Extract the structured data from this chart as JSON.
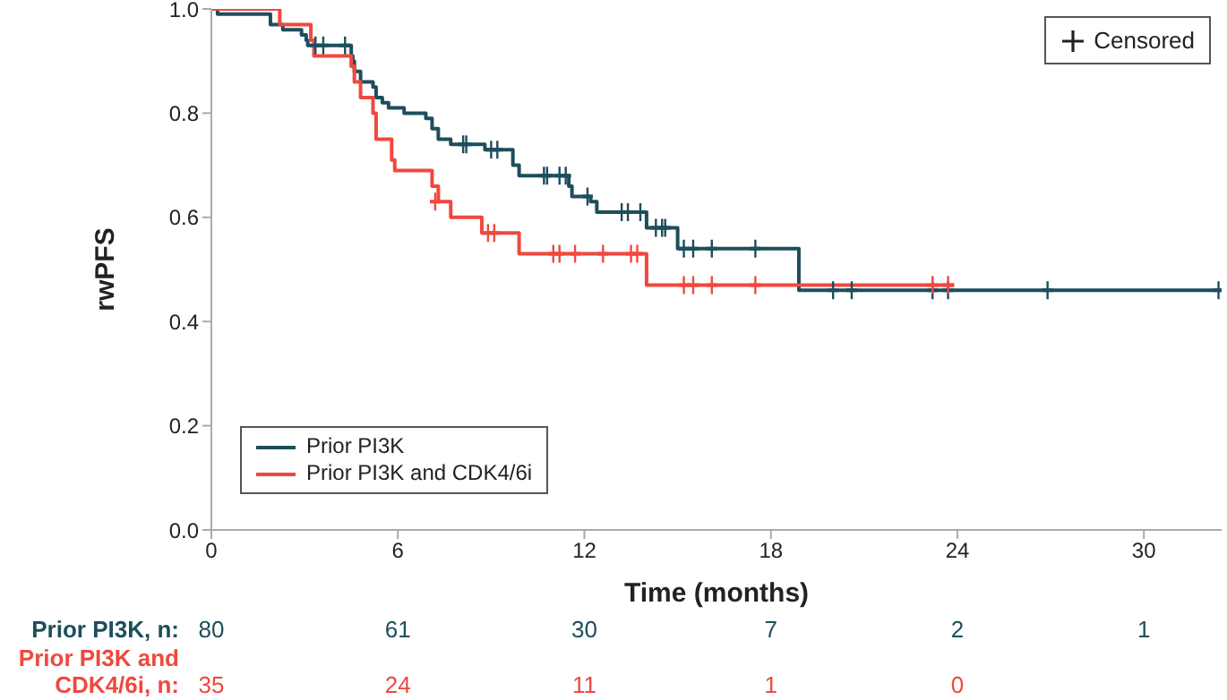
{
  "chart_data": {
    "type": "step",
    "xlabel": "Time (months)",
    "ylabel": "rwPFS",
    "xlim": [
      0,
      32.5
    ],
    "xticks": [
      0,
      6,
      12,
      18,
      24,
      30
    ],
    "ylim": [
      0,
      1
    ],
    "yticks": [
      {
        "value": 0,
        "label": "0.0"
      },
      {
        "value": 0.2,
        "label": "0.2"
      },
      {
        "value": 0.4,
        "label": "0.4"
      },
      {
        "value": 0.6,
        "label": "0.6"
      },
      {
        "value": 0.8,
        "label": "0.8"
      },
      {
        "value": 1,
        "label": "1.0"
      }
    ],
    "grid": false,
    "legend": "bottom left",
    "series": [
      {
        "name": "Prior PI3K",
        "color": "#1d4e5c",
        "x": [
          0,
          0.2,
          1.9,
          2.3,
          2.9,
          3.05,
          3.1,
          4.5,
          4.55,
          4.6,
          4.8,
          5.2,
          5.3,
          5.5,
          5.7,
          6.2,
          6.9,
          7.1,
          7.3,
          7.7,
          8.8,
          9.7,
          9.9,
          11.5,
          11.6,
          12.2,
          12.4,
          14.0,
          15.0,
          18.9,
          32.5
        ],
        "values": [
          1,
          0.99,
          0.97,
          0.96,
          0.95,
          0.94,
          0.93,
          0.91,
          0.9,
          0.88,
          0.86,
          0.85,
          0.83,
          0.82,
          0.81,
          0.8,
          0.79,
          0.77,
          0.75,
          0.74,
          0.73,
          0.7,
          0.68,
          0.66,
          0.64,
          0.63,
          0.61,
          0.58,
          0.54,
          0.46,
          0.46
        ]
      },
      {
        "name": "Prior PI3K and CDK4/6i",
        "color": "#f0483e",
        "x": [
          0,
          2.2,
          3.2,
          3.3,
          4.5,
          4.6,
          4.8,
          5.2,
          5.3,
          5.8,
          5.9,
          7.1,
          7.3,
          7.7,
          8.7,
          9.9,
          14.0,
          23.9
        ],
        "values": [
          1,
          0.97,
          0.94,
          0.91,
          0.89,
          0.86,
          0.83,
          0.8,
          0.75,
          0.71,
          0.69,
          0.66,
          0.63,
          0.6,
          0.57,
          0.53,
          0.47,
          0.47
        ]
      },
      {
        "type": "scatter",
        "marker": "cross",
        "color": "#333333",
        "x": [
          3.35,
          3.6,
          4.3,
          8.1,
          8.2,
          9.0,
          9.2,
          10.7,
          10.8,
          11.2,
          11.4,
          12.1,
          13.2,
          13.4,
          13.8,
          14.3,
          14.5,
          14.6,
          15.2,
          15.5,
          16.1,
          17.5,
          20.0,
          20.6,
          23.2,
          23.7,
          26.9,
          32.4,
          7.2,
          8.9,
          9.1,
          11.0,
          11.2,
          11.7,
          12.6,
          13.5,
          13.7,
          15.2,
          15.5,
          16.1,
          17.5,
          23.2,
          23.7
        ],
        "values": [
          0.93,
          0.93,
          0.93,
          0.74,
          0.74,
          0.73,
          0.73,
          0.68,
          0.68,
          0.68,
          0.68,
          0.64,
          0.61,
          0.61,
          0.61,
          0.58,
          0.58,
          0.58,
          0.54,
          0.54,
          0.54,
          0.54,
          0.46,
          0.46,
          0.46,
          0.46,
          0.46,
          0.46,
          0.63,
          0.57,
          0.57,
          0.53,
          0.53,
          0.53,
          0.53,
          0.53,
          0.53,
          0.47,
          0.47,
          0.47,
          0.47,
          0.47,
          0.47
        ],
        "colors": [
          "#1d4e5c",
          "#1d4e5c",
          "#1d4e5c",
          "#1d4e5c",
          "#1d4e5c",
          "#1d4e5c",
          "#1d4e5c",
          "#1d4e5c",
          "#1d4e5c",
          "#1d4e5c",
          "#1d4e5c",
          "#1d4e5c",
          "#1d4e5c",
          "#1d4e5c",
          "#1d4e5c",
          "#1d4e5c",
          "#1d4e5c",
          "#1d4e5c",
          "#1d4e5c",
          "#1d4e5c",
          "#1d4e5c",
          "#1d4e5c",
          "#1d4e5c",
          "#1d4e5c",
          "#1d4e5c",
          "#1d4e5c",
          "#1d4e5c",
          "#1d4e5c",
          "#f0483e",
          "#f0483e",
          "#f0483e",
          "#f0483e",
          "#f0483e",
          "#f0483e",
          "#f0483e",
          "#f0483e",
          "#f0483e",
          "#f0483e",
          "#f0483e",
          "#f0483e",
          "#f0483e",
          "#f0483e",
          "#f0483e"
        ]
      }
    ],
    "annotations": [
      "Censored",
      "Prior PI3K, n:",
      "80",
      "61",
      "30",
      "7",
      "2",
      "1",
      "Prior PI3K and CDK4/6i, n:",
      "35",
      "24",
      "11",
      "1",
      "0"
    ]
  }
}
